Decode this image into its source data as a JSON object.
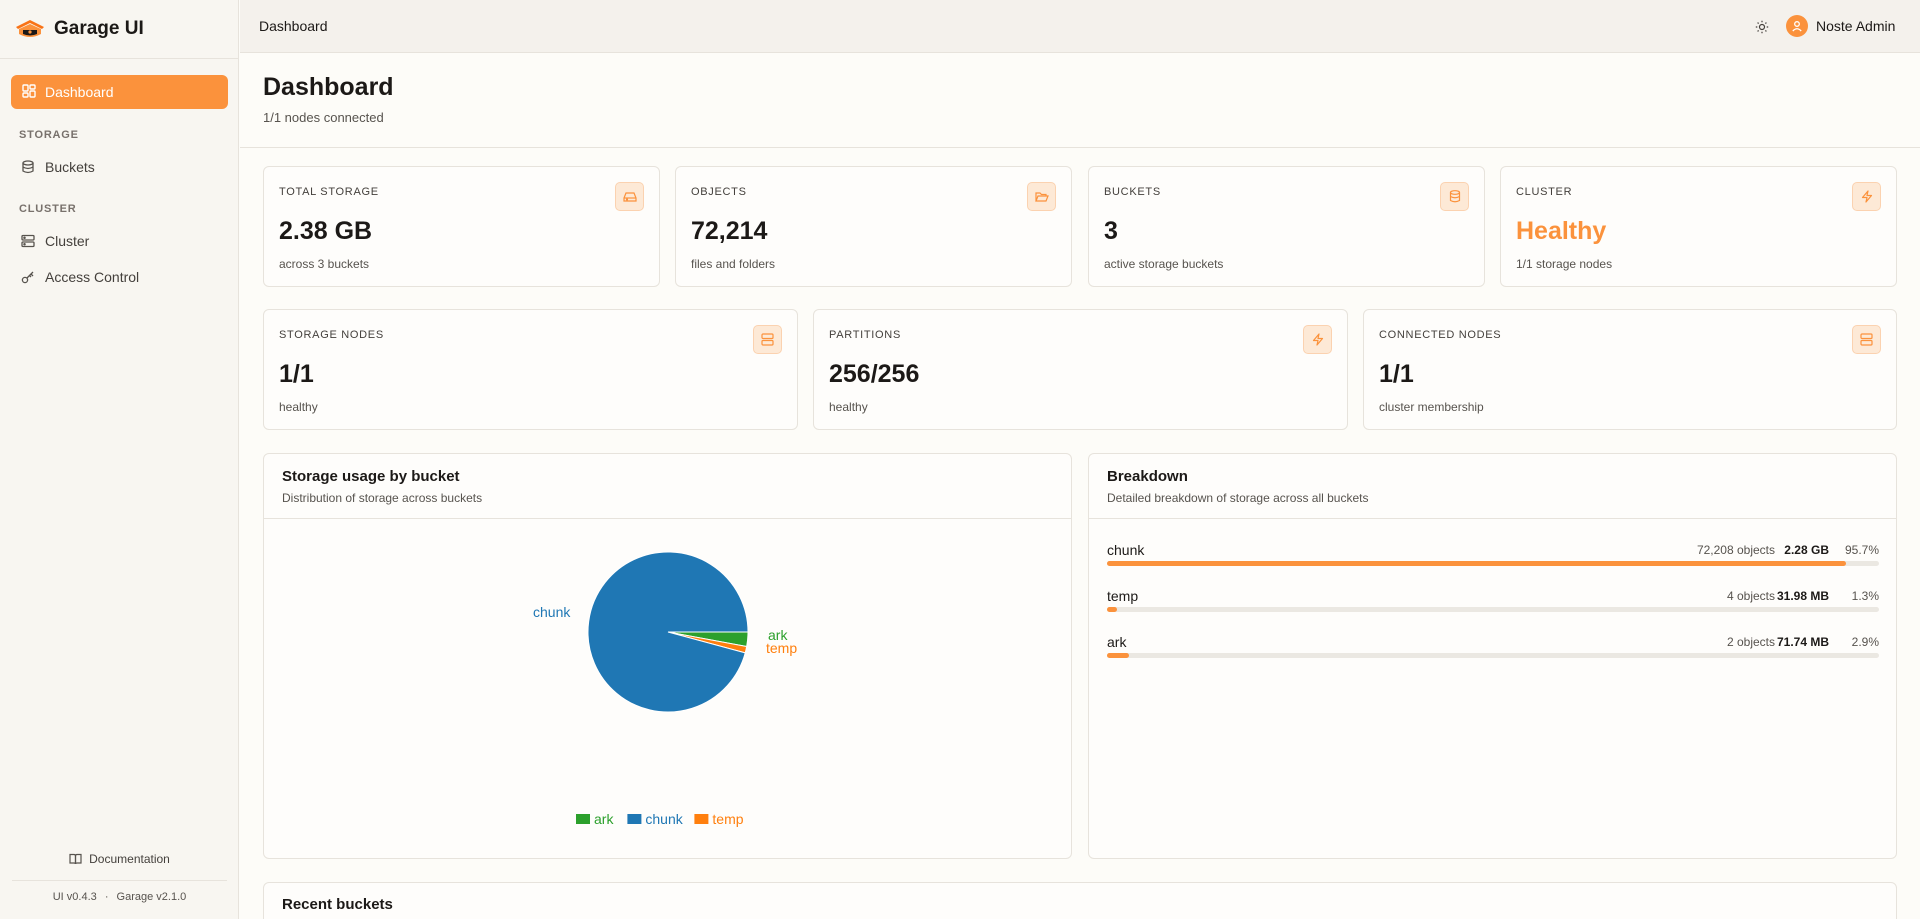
{
  "app": {
    "name": "Garage UI"
  },
  "sidebar": {
    "active": {
      "label": "Dashboard",
      "icon": "dashboard-icon"
    },
    "sections": [
      {
        "title": "STORAGE",
        "items": [
          {
            "label": "Buckets",
            "icon": "database-icon"
          }
        ]
      },
      {
        "title": "CLUSTER",
        "items": [
          {
            "label": "Cluster",
            "icon": "server-icon"
          },
          {
            "label": "Access Control",
            "icon": "key-icon"
          }
        ]
      }
    ],
    "documentation": "Documentation",
    "ui_version": "UI v0.4.3",
    "separator": "·",
    "garage_version": "Garage v2.1.0"
  },
  "header": {
    "title": "Dashboard",
    "user": "Noste Admin"
  },
  "page": {
    "title": "Dashboard",
    "subtitle": "1/1 nodes connected"
  },
  "stats": [
    {
      "label": "TOTAL STORAGE",
      "value": "2.38 GB",
      "sub": "across 3 buckets",
      "icon": "hard-drive-icon"
    },
    {
      "label": "OBJECTS",
      "value": "72,214",
      "sub": "files and folders",
      "icon": "folder-open-icon"
    },
    {
      "label": "BUCKETS",
      "value": "3",
      "sub": "active storage buckets",
      "icon": "database-icon"
    },
    {
      "label": "CLUSTER",
      "value": "Healthy",
      "sub": "1/1 storage nodes",
      "icon": "zap-icon"
    },
    {
      "label": "STORAGE NODES",
      "value": "1/1",
      "sub": "healthy",
      "icon": "server-icon"
    },
    {
      "label": "PARTITIONS",
      "value": "256/256",
      "sub": "healthy",
      "icon": "zap-icon"
    },
    {
      "label": "CONNECTED NODES",
      "value": "1/1",
      "sub": "cluster membership",
      "icon": "server-icon"
    }
  ],
  "usage_panel": {
    "title": "Storage usage by bucket",
    "subtitle": "Distribution of storage across buckets"
  },
  "chart_data": {
    "type": "pie",
    "categories": [
      "chunk",
      "ark",
      "temp"
    ],
    "values": [
      95.7,
      2.9,
      1.3
    ],
    "legend": [
      "ark",
      "chunk",
      "temp"
    ],
    "legend_position": "bottom",
    "colors": {
      "chunk": "#1f77b4",
      "ark": "#2ca02c",
      "temp": "#ff7f0e"
    }
  },
  "breakdown": {
    "title": "Breakdown",
    "subtitle": "Detailed breakdown of storage across all buckets",
    "rows": [
      {
        "name": "chunk",
        "objects": "72,208 objects",
        "size": "2.28 GB",
        "pct": "95.7%",
        "fraction": 0.957
      },
      {
        "name": "temp",
        "objects": "4 objects",
        "size": "31.98 MB",
        "pct": "1.3%",
        "fraction": 0.013
      },
      {
        "name": "ark",
        "objects": "2 objects",
        "size": "71.74 MB",
        "pct": "2.9%",
        "fraction": 0.029
      }
    ]
  },
  "recent": {
    "title": "Recent buckets"
  }
}
